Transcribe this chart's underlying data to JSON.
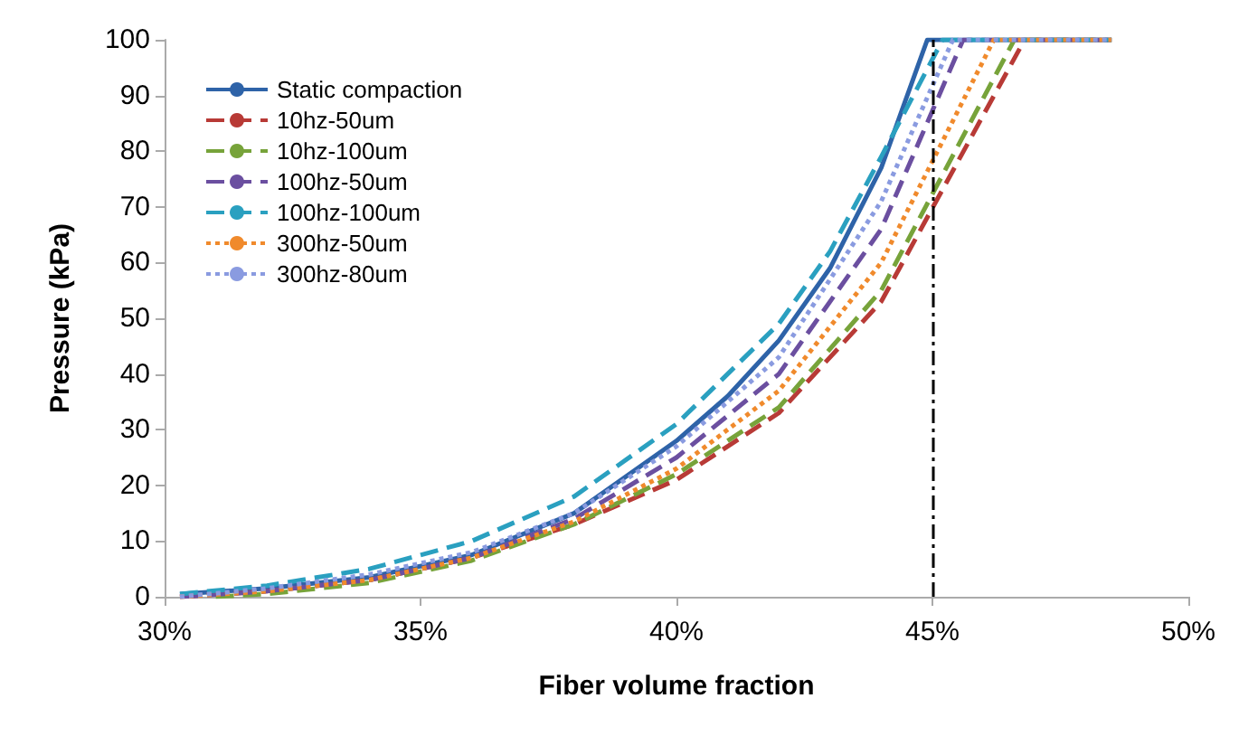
{
  "chart_data": {
    "type": "line",
    "xlabel": "Fiber volume fraction",
    "ylabel": "Pressure (kPa)",
    "xlim": [
      30,
      50
    ],
    "xticks": [
      {
        "value": 30,
        "label": "30%"
      },
      {
        "value": 35,
        "label": "35%"
      },
      {
        "value": 40,
        "label": "40%"
      },
      {
        "value": 45,
        "label": "45%"
      },
      {
        "value": 50,
        "label": "50%"
      }
    ],
    "ylim": [
      0,
      100
    ],
    "yticks": [
      0,
      10,
      20,
      30,
      40,
      50,
      60,
      70,
      80,
      90,
      100
    ],
    "grid": false,
    "legend": "top left",
    "marker": "none",
    "ref_lines": [
      {
        "axis": "x",
        "value": 45,
        "color": "#000000",
        "line_style": "dashed"
      }
    ],
    "series": [
      {
        "name": "Static compaction",
        "color": "#2e63a8",
        "line_style": "solid",
        "x": [
          30.3,
          32,
          34,
          36,
          38,
          40,
          41,
          42,
          43,
          44,
          44.9,
          48.5
        ],
        "values": [
          0.5,
          1.5,
          3.5,
          7.5,
          15,
          28,
          36,
          46,
          59,
          77,
          100,
          100
        ]
      },
      {
        "name": "10hz-50um",
        "color": "#b83a36",
        "line_style": "dashed",
        "x": [
          30.3,
          32,
          34,
          36,
          38,
          40,
          42,
          44,
          46.8,
          48.5
        ],
        "values": [
          0,
          1,
          3,
          7,
          13,
          21,
          33,
          53,
          100,
          100
        ]
      },
      {
        "name": "10hz-100um",
        "color": "#77a33a",
        "line_style": "dashed",
        "x": [
          31,
          32,
          34,
          36,
          38,
          40,
          42,
          44,
          46.6,
          48.5
        ],
        "values": [
          0,
          0.5,
          2.5,
          6.5,
          13,
          22,
          34,
          55,
          100,
          100
        ]
      },
      {
        "name": "100hz-50um",
        "color": "#6b4fa0",
        "line_style": "dashed",
        "x": [
          30.3,
          32,
          34,
          36,
          38,
          40,
          42,
          44,
          45.6,
          48.5
        ],
        "values": [
          0,
          1,
          3,
          7,
          14,
          25,
          40,
          66,
          100,
          100
        ]
      },
      {
        "name": "100hz-100um",
        "color": "#2aa0c0",
        "line_style": "dashed",
        "x": [
          30.3,
          32,
          34,
          36,
          38,
          40,
          42,
          43,
          44,
          45.2,
          48.5
        ],
        "values": [
          0.5,
          2,
          5,
          10,
          18,
          31,
          49,
          62,
          79,
          100,
          100
        ]
      },
      {
        "name": "300hz-50um",
        "color": "#f08a2c",
        "line_style": "dotted",
        "x": [
          30.3,
          32,
          34,
          36,
          38,
          40,
          42,
          44,
          46.2,
          48.5
        ],
        "values": [
          0,
          1,
          3,
          7,
          13.5,
          23,
          37,
          60,
          100,
          100
        ]
      },
      {
        "name": "300hz-80um",
        "color": "#8a9be0",
        "line_style": "dotted",
        "x": [
          30.3,
          32,
          34,
          36,
          38,
          40,
          42,
          44,
          45.4,
          48.5
        ],
        "values": [
          0,
          1.5,
          4,
          8,
          15,
          27,
          43,
          71,
          100,
          100
        ]
      }
    ]
  }
}
